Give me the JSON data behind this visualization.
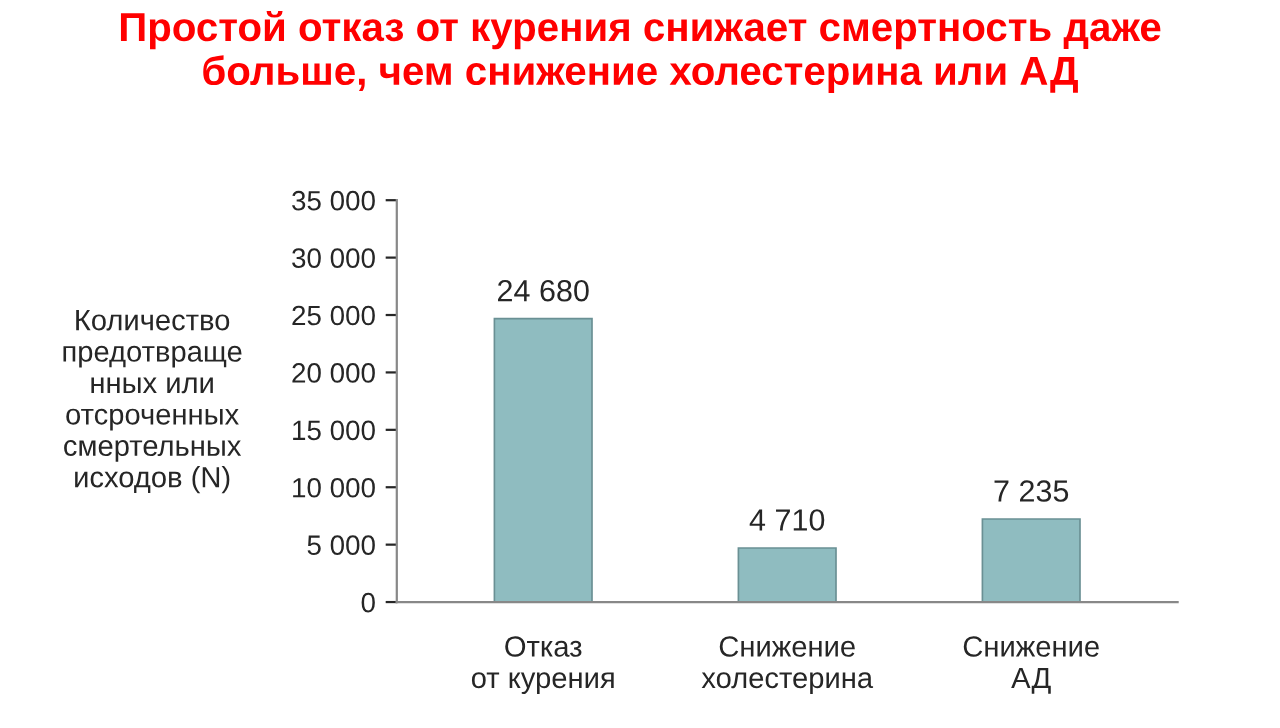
{
  "chart_data": {
    "type": "bar",
    "title": "Простой отказ от курения снижает смертность даже\nбольше, чем снижение холестерина или АД",
    "ylabel": "Количество\nпредотвраще\nнных или\nотсроченных\nсмертельных\nисходов (N)",
    "categories": [
      "Отказ\nот курения",
      "Снижение\nхолестерина",
      "Снижение\nАД"
    ],
    "values": [
      24680,
      4710,
      7235
    ],
    "value_labels": [
      "24 680",
      "4 710",
      "7 235"
    ],
    "color": "#8fbcc0",
    "ylim": [
      0,
      35000
    ],
    "yticks": [
      {
        "value": 0,
        "label": "0"
      },
      {
        "value": 5000,
        "label": "5 000"
      },
      {
        "value": 10000,
        "label": "10 000"
      },
      {
        "value": 15000,
        "label": "15 000"
      },
      {
        "value": 20000,
        "label": "20 000"
      },
      {
        "value": 25000,
        "label": "25 000"
      },
      {
        "value": 30000,
        "label": "30 000"
      },
      {
        "value": 35000,
        "label": "35 000"
      }
    ],
    "grid": false,
    "legend": false
  }
}
